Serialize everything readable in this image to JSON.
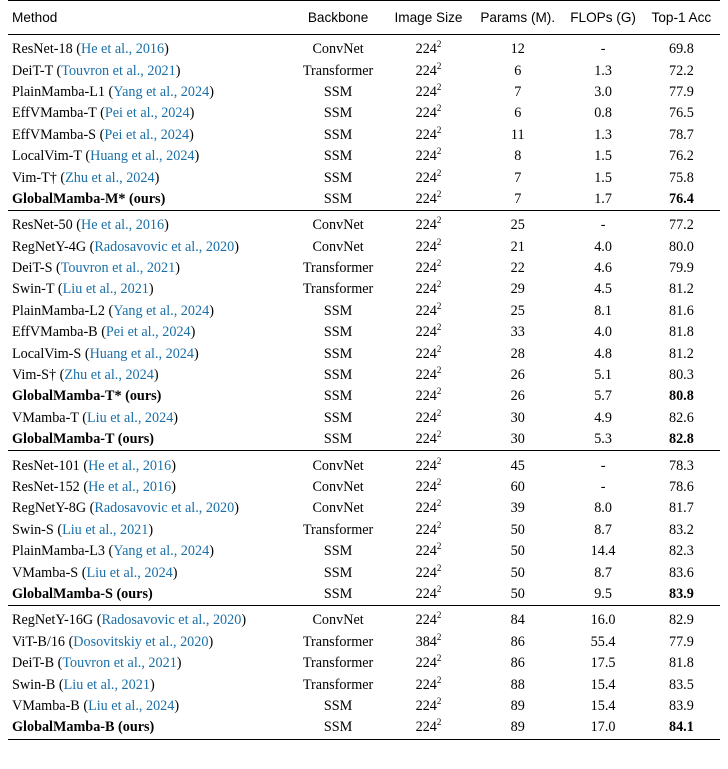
{
  "headers": {
    "method": "Method",
    "backbone": "Backbone",
    "image_size": "Image Size",
    "params": "Params (M).",
    "flops": "FLOPs (G)",
    "top1": "Top-1 Acc"
  },
  "groups": [
    [
      {
        "name": "ResNet-18",
        "cite": "He et al., 2016",
        "suffix": "",
        "bold": false,
        "backbone": "ConvNet",
        "size_base": "224",
        "size_exp": "2",
        "params": "12",
        "flops": "-",
        "acc": "69.8",
        "acc_bold": false
      },
      {
        "name": "DeiT-T",
        "cite": "Touvron et al., 2021",
        "suffix": "",
        "bold": false,
        "backbone": "Transformer",
        "size_base": "224",
        "size_exp": "2",
        "params": "6",
        "flops": "1.3",
        "acc": "72.2",
        "acc_bold": false
      },
      {
        "name": "PlainMamba-L1",
        "cite": "Yang et al., 2024",
        "suffix": "",
        "bold": false,
        "backbone": "SSM",
        "size_base": "224",
        "size_exp": "2",
        "params": "7",
        "flops": "3.0",
        "acc": "77.9",
        "acc_bold": false
      },
      {
        "name": "EffVMamba-T",
        "cite": "Pei et al., 2024",
        "suffix": "",
        "bold": false,
        "backbone": "SSM",
        "size_base": "224",
        "size_exp": "2",
        "params": "6",
        "flops": "0.8",
        "acc": "76.5",
        "acc_bold": false
      },
      {
        "name": "EffVMamba-S",
        "cite": "Pei et al., 2024",
        "suffix": "",
        "bold": false,
        "backbone": "SSM",
        "size_base": "224",
        "size_exp": "2",
        "params": "11",
        "flops": "1.3",
        "acc": "78.7",
        "acc_bold": false
      },
      {
        "name": "LocalVim-T",
        "cite": "Huang et al., 2024",
        "suffix": "",
        "bold": false,
        "backbone": "SSM",
        "size_base": "224",
        "size_exp": "2",
        "params": "8",
        "flops": "1.5",
        "acc": "76.2",
        "acc_bold": false
      },
      {
        "name": "Vim-T†",
        "cite": "Zhu et al., 2024",
        "suffix": "",
        "bold": false,
        "backbone": "SSM",
        "size_base": "224",
        "size_exp": "2",
        "params": "7",
        "flops": "1.5",
        "acc": "75.8",
        "acc_bold": false
      },
      {
        "name": "GlobalMamba-M* (ours)",
        "cite": "",
        "suffix": "",
        "bold": true,
        "backbone": "SSM",
        "size_base": "224",
        "size_exp": "2",
        "params": "7",
        "flops": "1.7",
        "acc": "76.4",
        "acc_bold": true
      }
    ],
    [
      {
        "name": "ResNet-50",
        "cite": "He et al., 2016",
        "suffix": "",
        "bold": false,
        "backbone": "ConvNet",
        "size_base": "224",
        "size_exp": "2",
        "params": "25",
        "flops": "-",
        "acc": "77.2",
        "acc_bold": false
      },
      {
        "name": "RegNetY-4G",
        "cite": "Radosavovic et al., 2020",
        "suffix": "",
        "bold": false,
        "backbone": "ConvNet",
        "size_base": "224",
        "size_exp": "2",
        "params": "21",
        "flops": "4.0",
        "acc": "80.0",
        "acc_bold": false
      },
      {
        "name": "DeiT-S",
        "cite": "Touvron et al., 2021",
        "suffix": "",
        "bold": false,
        "backbone": "Transformer",
        "size_base": "224",
        "size_exp": "2",
        "params": "22",
        "flops": "4.6",
        "acc": "79.9",
        "acc_bold": false
      },
      {
        "name": "Swin-T",
        "cite": "Liu et al., 2021",
        "suffix": "",
        "bold": false,
        "backbone": "Transformer",
        "size_base": "224",
        "size_exp": "2",
        "params": "29",
        "flops": "4.5",
        "acc": "81.2",
        "acc_bold": false
      },
      {
        "name": "PlainMamba-L2",
        "cite": "Yang et al., 2024",
        "suffix": "",
        "bold": false,
        "backbone": "SSM",
        "size_base": "224",
        "size_exp": "2",
        "params": "25",
        "flops": "8.1",
        "acc": "81.6",
        "acc_bold": false
      },
      {
        "name": "EffVMamba-B",
        "cite": "Pei et al., 2024",
        "suffix": "",
        "bold": false,
        "backbone": "SSM",
        "size_base": "224",
        "size_exp": "2",
        "params": "33",
        "flops": "4.0",
        "acc": "81.8",
        "acc_bold": false
      },
      {
        "name": "LocalVim-S",
        "cite": "Huang et al., 2024",
        "suffix": "",
        "bold": false,
        "backbone": "SSM",
        "size_base": "224",
        "size_exp": "2",
        "params": "28",
        "flops": "4.8",
        "acc": "81.2",
        "acc_bold": false
      },
      {
        "name": "Vim-S†",
        "cite": "Zhu et al., 2024",
        "suffix": "",
        "bold": false,
        "backbone": "SSM",
        "size_base": "224",
        "size_exp": "2",
        "params": "26",
        "flops": "5.1",
        "acc": "80.3",
        "acc_bold": false
      },
      {
        "name": "GlobalMamba-T* (ours)",
        "cite": "",
        "suffix": "",
        "bold": true,
        "backbone": "SSM",
        "size_base": "224",
        "size_exp": "2",
        "params": "26",
        "flops": "5.7",
        "acc": "80.8",
        "acc_bold": true
      },
      {
        "name": "VMamba-T",
        "cite": "Liu et al., 2024",
        "suffix": "",
        "bold": false,
        "backbone": "SSM",
        "size_base": "224",
        "size_exp": "2",
        "params": "30",
        "flops": "4.9",
        "acc": "82.6",
        "acc_bold": false
      },
      {
        "name": "GlobalMamba-T (ours)",
        "cite": "",
        "suffix": "",
        "bold": true,
        "backbone": "SSM",
        "size_base": "224",
        "size_exp": "2",
        "params": "30",
        "flops": "5.3",
        "acc": "82.8",
        "acc_bold": true
      }
    ],
    [
      {
        "name": "ResNet-101",
        "cite": "He et al., 2016",
        "suffix": "",
        "bold": false,
        "backbone": "ConvNet",
        "size_base": "224",
        "size_exp": "2",
        "params": "45",
        "flops": "-",
        "acc": "78.3",
        "acc_bold": false
      },
      {
        "name": "ResNet-152",
        "cite": "He et al., 2016",
        "suffix": "",
        "bold": false,
        "backbone": "ConvNet",
        "size_base": "224",
        "size_exp": "2",
        "params": "60",
        "flops": "-",
        "acc": "78.6",
        "acc_bold": false
      },
      {
        "name": "RegNetY-8G",
        "cite": "Radosavovic et al., 2020",
        "suffix": "",
        "bold": false,
        "backbone": "ConvNet",
        "size_base": "224",
        "size_exp": "2",
        "params": "39",
        "flops": "8.0",
        "acc": "81.7",
        "acc_bold": false
      },
      {
        "name": "Swin-S",
        "cite": "Liu et al., 2021",
        "suffix": "",
        "bold": false,
        "backbone": "Transformer",
        "size_base": "224",
        "size_exp": "2",
        "params": "50",
        "flops": "8.7",
        "acc": "83.2",
        "acc_bold": false
      },
      {
        "name": "PlainMamba-L3",
        "cite": "Yang et al., 2024",
        "suffix": "",
        "bold": false,
        "backbone": "SSM",
        "size_base": "224",
        "size_exp": "2",
        "params": "50",
        "flops": "14.4",
        "acc": "82.3",
        "acc_bold": false
      },
      {
        "name": "VMamba-S",
        "cite": "Liu et al., 2024",
        "suffix": "",
        "bold": false,
        "backbone": "SSM",
        "size_base": "224",
        "size_exp": "2",
        "params": "50",
        "flops": "8.7",
        "acc": "83.6",
        "acc_bold": false
      },
      {
        "name": "GlobalMamba-S (ours)",
        "cite": "",
        "suffix": "",
        "bold": true,
        "backbone": "SSM",
        "size_base": "224",
        "size_exp": "2",
        "params": "50",
        "flops": "9.5",
        "acc": "83.9",
        "acc_bold": true
      }
    ],
    [
      {
        "name": "RegNetY-16G",
        "cite": "Radosavovic et al., 2020",
        "suffix": "",
        "bold": false,
        "backbone": "ConvNet",
        "size_base": "224",
        "size_exp": "2",
        "params": "84",
        "flops": "16.0",
        "acc": "82.9",
        "acc_bold": false
      },
      {
        "name": "ViT-B/16",
        "cite": "Dosovitskiy et al., 2020",
        "suffix": "",
        "bold": false,
        "backbone": "Transformer",
        "size_base": "384",
        "size_exp": "2",
        "params": "86",
        "flops": "55.4",
        "acc": "77.9",
        "acc_bold": false
      },
      {
        "name": "DeiT-B",
        "cite": "Touvron et al., 2021",
        "suffix": "",
        "bold": false,
        "backbone": "Transformer",
        "size_base": "224",
        "size_exp": "2",
        "params": "86",
        "flops": "17.5",
        "acc": "81.8",
        "acc_bold": false
      },
      {
        "name": "Swin-B",
        "cite": "Liu et al., 2021",
        "suffix": "",
        "bold": false,
        "backbone": "Transformer",
        "size_base": "224",
        "size_exp": "2",
        "params": "88",
        "flops": "15.4",
        "acc": "83.5",
        "acc_bold": false
      },
      {
        "name": "VMamba-B",
        "cite": "Liu et al., 2024",
        "suffix": "",
        "bold": false,
        "backbone": "SSM",
        "size_base": "224",
        "size_exp": "2",
        "params": "89",
        "flops": "15.4",
        "acc": "83.9",
        "acc_bold": false
      },
      {
        "name": "GlobalMamba-B (ours)",
        "cite": "",
        "suffix": "",
        "bold": true,
        "backbone": "SSM",
        "size_base": "224",
        "size_exp": "2",
        "params": "89",
        "flops": "17.0",
        "acc": "84.1",
        "acc_bold": true
      }
    ]
  ]
}
